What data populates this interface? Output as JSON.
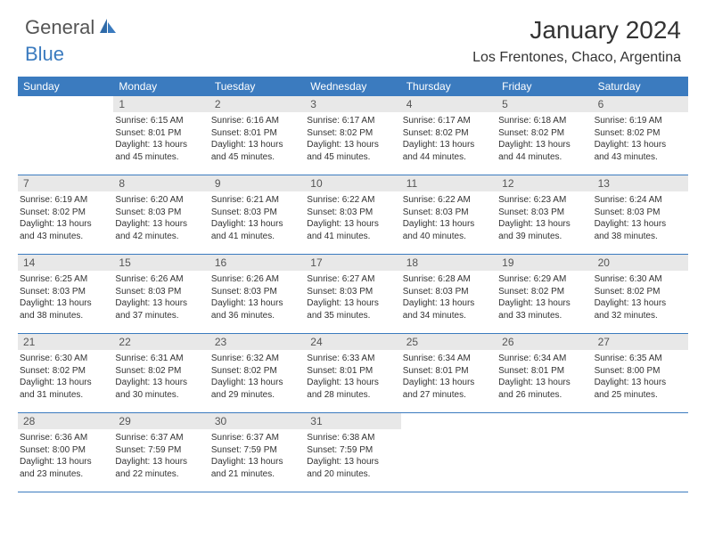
{
  "logo": {
    "text1": "General",
    "text2": "Blue"
  },
  "title": "January 2024",
  "location": "Los Frentones, Chaco, Argentina",
  "colors": {
    "accent": "#3b7bbf",
    "daynum_bg": "#e8e8e8",
    "text": "#333333"
  },
  "weekdays": [
    "Sunday",
    "Monday",
    "Tuesday",
    "Wednesday",
    "Thursday",
    "Friday",
    "Saturday"
  ],
  "weeks": [
    [
      {
        "n": "",
        "sr": "",
        "ss": "",
        "dl1": "",
        "dl2": "",
        "empty": true
      },
      {
        "n": "1",
        "sr": "Sunrise: 6:15 AM",
        "ss": "Sunset: 8:01 PM",
        "dl1": "Daylight: 13 hours",
        "dl2": "and 45 minutes."
      },
      {
        "n": "2",
        "sr": "Sunrise: 6:16 AM",
        "ss": "Sunset: 8:01 PM",
        "dl1": "Daylight: 13 hours",
        "dl2": "and 45 minutes."
      },
      {
        "n": "3",
        "sr": "Sunrise: 6:17 AM",
        "ss": "Sunset: 8:02 PM",
        "dl1": "Daylight: 13 hours",
        "dl2": "and 45 minutes."
      },
      {
        "n": "4",
        "sr": "Sunrise: 6:17 AM",
        "ss": "Sunset: 8:02 PM",
        "dl1": "Daylight: 13 hours",
        "dl2": "and 44 minutes."
      },
      {
        "n": "5",
        "sr": "Sunrise: 6:18 AM",
        "ss": "Sunset: 8:02 PM",
        "dl1": "Daylight: 13 hours",
        "dl2": "and 44 minutes."
      },
      {
        "n": "6",
        "sr": "Sunrise: 6:19 AM",
        "ss": "Sunset: 8:02 PM",
        "dl1": "Daylight: 13 hours",
        "dl2": "and 43 minutes."
      }
    ],
    [
      {
        "n": "7",
        "sr": "Sunrise: 6:19 AM",
        "ss": "Sunset: 8:02 PM",
        "dl1": "Daylight: 13 hours",
        "dl2": "and 43 minutes."
      },
      {
        "n": "8",
        "sr": "Sunrise: 6:20 AM",
        "ss": "Sunset: 8:03 PM",
        "dl1": "Daylight: 13 hours",
        "dl2": "and 42 minutes."
      },
      {
        "n": "9",
        "sr": "Sunrise: 6:21 AM",
        "ss": "Sunset: 8:03 PM",
        "dl1": "Daylight: 13 hours",
        "dl2": "and 41 minutes."
      },
      {
        "n": "10",
        "sr": "Sunrise: 6:22 AM",
        "ss": "Sunset: 8:03 PM",
        "dl1": "Daylight: 13 hours",
        "dl2": "and 41 minutes."
      },
      {
        "n": "11",
        "sr": "Sunrise: 6:22 AM",
        "ss": "Sunset: 8:03 PM",
        "dl1": "Daylight: 13 hours",
        "dl2": "and 40 minutes."
      },
      {
        "n": "12",
        "sr": "Sunrise: 6:23 AM",
        "ss": "Sunset: 8:03 PM",
        "dl1": "Daylight: 13 hours",
        "dl2": "and 39 minutes."
      },
      {
        "n": "13",
        "sr": "Sunrise: 6:24 AM",
        "ss": "Sunset: 8:03 PM",
        "dl1": "Daylight: 13 hours",
        "dl2": "and 38 minutes."
      }
    ],
    [
      {
        "n": "14",
        "sr": "Sunrise: 6:25 AM",
        "ss": "Sunset: 8:03 PM",
        "dl1": "Daylight: 13 hours",
        "dl2": "and 38 minutes."
      },
      {
        "n": "15",
        "sr": "Sunrise: 6:26 AM",
        "ss": "Sunset: 8:03 PM",
        "dl1": "Daylight: 13 hours",
        "dl2": "and 37 minutes."
      },
      {
        "n": "16",
        "sr": "Sunrise: 6:26 AM",
        "ss": "Sunset: 8:03 PM",
        "dl1": "Daylight: 13 hours",
        "dl2": "and 36 minutes."
      },
      {
        "n": "17",
        "sr": "Sunrise: 6:27 AM",
        "ss": "Sunset: 8:03 PM",
        "dl1": "Daylight: 13 hours",
        "dl2": "and 35 minutes."
      },
      {
        "n": "18",
        "sr": "Sunrise: 6:28 AM",
        "ss": "Sunset: 8:03 PM",
        "dl1": "Daylight: 13 hours",
        "dl2": "and 34 minutes."
      },
      {
        "n": "19",
        "sr": "Sunrise: 6:29 AM",
        "ss": "Sunset: 8:02 PM",
        "dl1": "Daylight: 13 hours",
        "dl2": "and 33 minutes."
      },
      {
        "n": "20",
        "sr": "Sunrise: 6:30 AM",
        "ss": "Sunset: 8:02 PM",
        "dl1": "Daylight: 13 hours",
        "dl2": "and 32 minutes."
      }
    ],
    [
      {
        "n": "21",
        "sr": "Sunrise: 6:30 AM",
        "ss": "Sunset: 8:02 PM",
        "dl1": "Daylight: 13 hours",
        "dl2": "and 31 minutes."
      },
      {
        "n": "22",
        "sr": "Sunrise: 6:31 AM",
        "ss": "Sunset: 8:02 PM",
        "dl1": "Daylight: 13 hours",
        "dl2": "and 30 minutes."
      },
      {
        "n": "23",
        "sr": "Sunrise: 6:32 AM",
        "ss": "Sunset: 8:02 PM",
        "dl1": "Daylight: 13 hours",
        "dl2": "and 29 minutes."
      },
      {
        "n": "24",
        "sr": "Sunrise: 6:33 AM",
        "ss": "Sunset: 8:01 PM",
        "dl1": "Daylight: 13 hours",
        "dl2": "and 28 minutes."
      },
      {
        "n": "25",
        "sr": "Sunrise: 6:34 AM",
        "ss": "Sunset: 8:01 PM",
        "dl1": "Daylight: 13 hours",
        "dl2": "and 27 minutes."
      },
      {
        "n": "26",
        "sr": "Sunrise: 6:34 AM",
        "ss": "Sunset: 8:01 PM",
        "dl1": "Daylight: 13 hours",
        "dl2": "and 26 minutes."
      },
      {
        "n": "27",
        "sr": "Sunrise: 6:35 AM",
        "ss": "Sunset: 8:00 PM",
        "dl1": "Daylight: 13 hours",
        "dl2": "and 25 minutes."
      }
    ],
    [
      {
        "n": "28",
        "sr": "Sunrise: 6:36 AM",
        "ss": "Sunset: 8:00 PM",
        "dl1": "Daylight: 13 hours",
        "dl2": "and 23 minutes."
      },
      {
        "n": "29",
        "sr": "Sunrise: 6:37 AM",
        "ss": "Sunset: 7:59 PM",
        "dl1": "Daylight: 13 hours",
        "dl2": "and 22 minutes."
      },
      {
        "n": "30",
        "sr": "Sunrise: 6:37 AM",
        "ss": "Sunset: 7:59 PM",
        "dl1": "Daylight: 13 hours",
        "dl2": "and 21 minutes."
      },
      {
        "n": "31",
        "sr": "Sunrise: 6:38 AM",
        "ss": "Sunset: 7:59 PM",
        "dl1": "Daylight: 13 hours",
        "dl2": "and 20 minutes."
      },
      {
        "n": "",
        "sr": "",
        "ss": "",
        "dl1": "",
        "dl2": "",
        "empty": true
      },
      {
        "n": "",
        "sr": "",
        "ss": "",
        "dl1": "",
        "dl2": "",
        "empty": true
      },
      {
        "n": "",
        "sr": "",
        "ss": "",
        "dl1": "",
        "dl2": "",
        "empty": true
      }
    ]
  ]
}
